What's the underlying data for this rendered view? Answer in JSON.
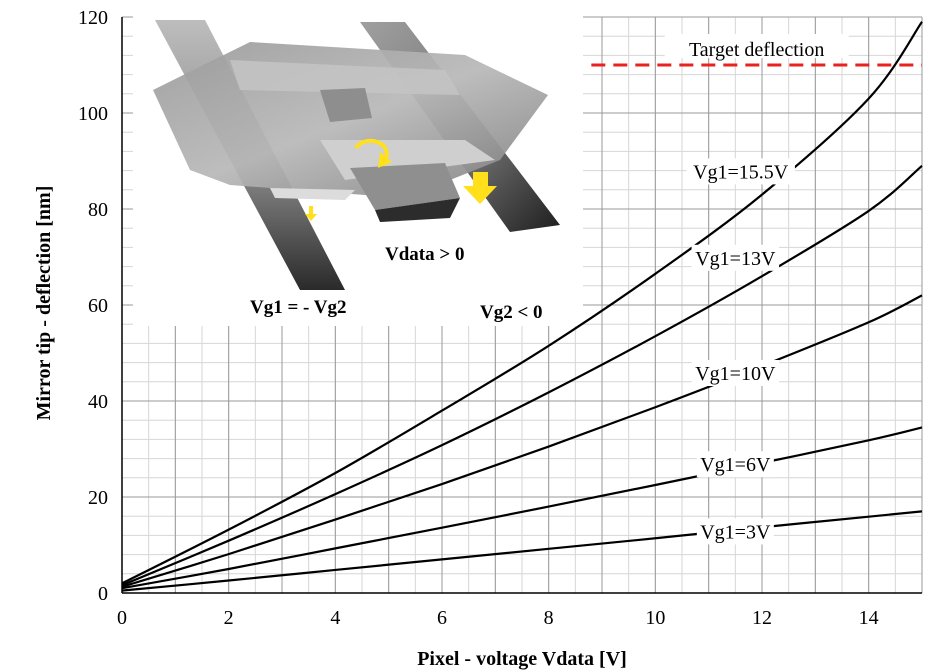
{
  "chart_data": {
    "type": "line",
    "xlabel": "Pixel - voltage Vdata [V]",
    "ylabel": "Mirror  tip - deflection  [nm]",
    "xlim": [
      0,
      15
    ],
    "ylim": [
      0,
      120
    ],
    "x_ticks": [
      "0",
      "2",
      "4",
      "6",
      "8",
      "10",
      "12",
      "14"
    ],
    "y_ticks": [
      "0",
      "20",
      "40",
      "60",
      "80",
      "100",
      "120"
    ],
    "grid": true,
    "series": [
      {
        "name": "Vg1=3V",
        "x": [
          0,
          2,
          4,
          6,
          8,
          10,
          12,
          14,
          15
        ],
        "y": [
          0.5,
          2.6,
          4.8,
          7.0,
          9.2,
          11.4,
          13.7,
          15.9,
          17.0
        ],
        "label_at": [
          11.5,
          12
        ]
      },
      {
        "name": "Vg1=6V",
        "x": [
          0,
          2,
          4,
          6,
          8,
          10,
          12,
          14,
          15
        ],
        "y": [
          1.0,
          5.0,
          9.3,
          13.6,
          18.0,
          22.5,
          27.1,
          31.8,
          34.5
        ],
        "label_at": [
          11.5,
          26
        ]
      },
      {
        "name": "Vg1=10V",
        "x": [
          0,
          2,
          4,
          6,
          8,
          10,
          12,
          14,
          15
        ],
        "y": [
          1.3,
          8.1,
          15.3,
          22.7,
          30.5,
          38.7,
          47.3,
          56.4,
          62.0
        ],
        "label_at": [
          11.5,
          45
        ]
      },
      {
        "name": "Vg1=13V",
        "x": [
          0,
          2,
          4,
          6,
          8,
          10,
          12,
          14,
          15
        ],
        "y": [
          1.6,
          10.9,
          20.6,
          30.8,
          41.8,
          53.5,
          66.0,
          79.6,
          89.0
        ],
        "label_at": [
          11.5,
          69
        ]
      },
      {
        "name": "Vg1=15.5V",
        "x": [
          0,
          2,
          4,
          6,
          8,
          10,
          12,
          14,
          15
        ],
        "y": [
          2.0,
          13.2,
          25.0,
          38.0,
          51.5,
          66.5,
          83.0,
          103.0,
          119.0
        ],
        "label_at": [
          11.6,
          87
        ]
      }
    ],
    "reference_line": {
      "label": "Target deflection",
      "y": 110,
      "color": "#e8231f",
      "style": "dashed"
    }
  },
  "inset": {
    "labels": {
      "vdata": "Vdata > 0",
      "vg1": "Vg1 = - Vg2",
      "vg2": "Vg2 < 0"
    },
    "arrow_color": "#ffe01a"
  }
}
